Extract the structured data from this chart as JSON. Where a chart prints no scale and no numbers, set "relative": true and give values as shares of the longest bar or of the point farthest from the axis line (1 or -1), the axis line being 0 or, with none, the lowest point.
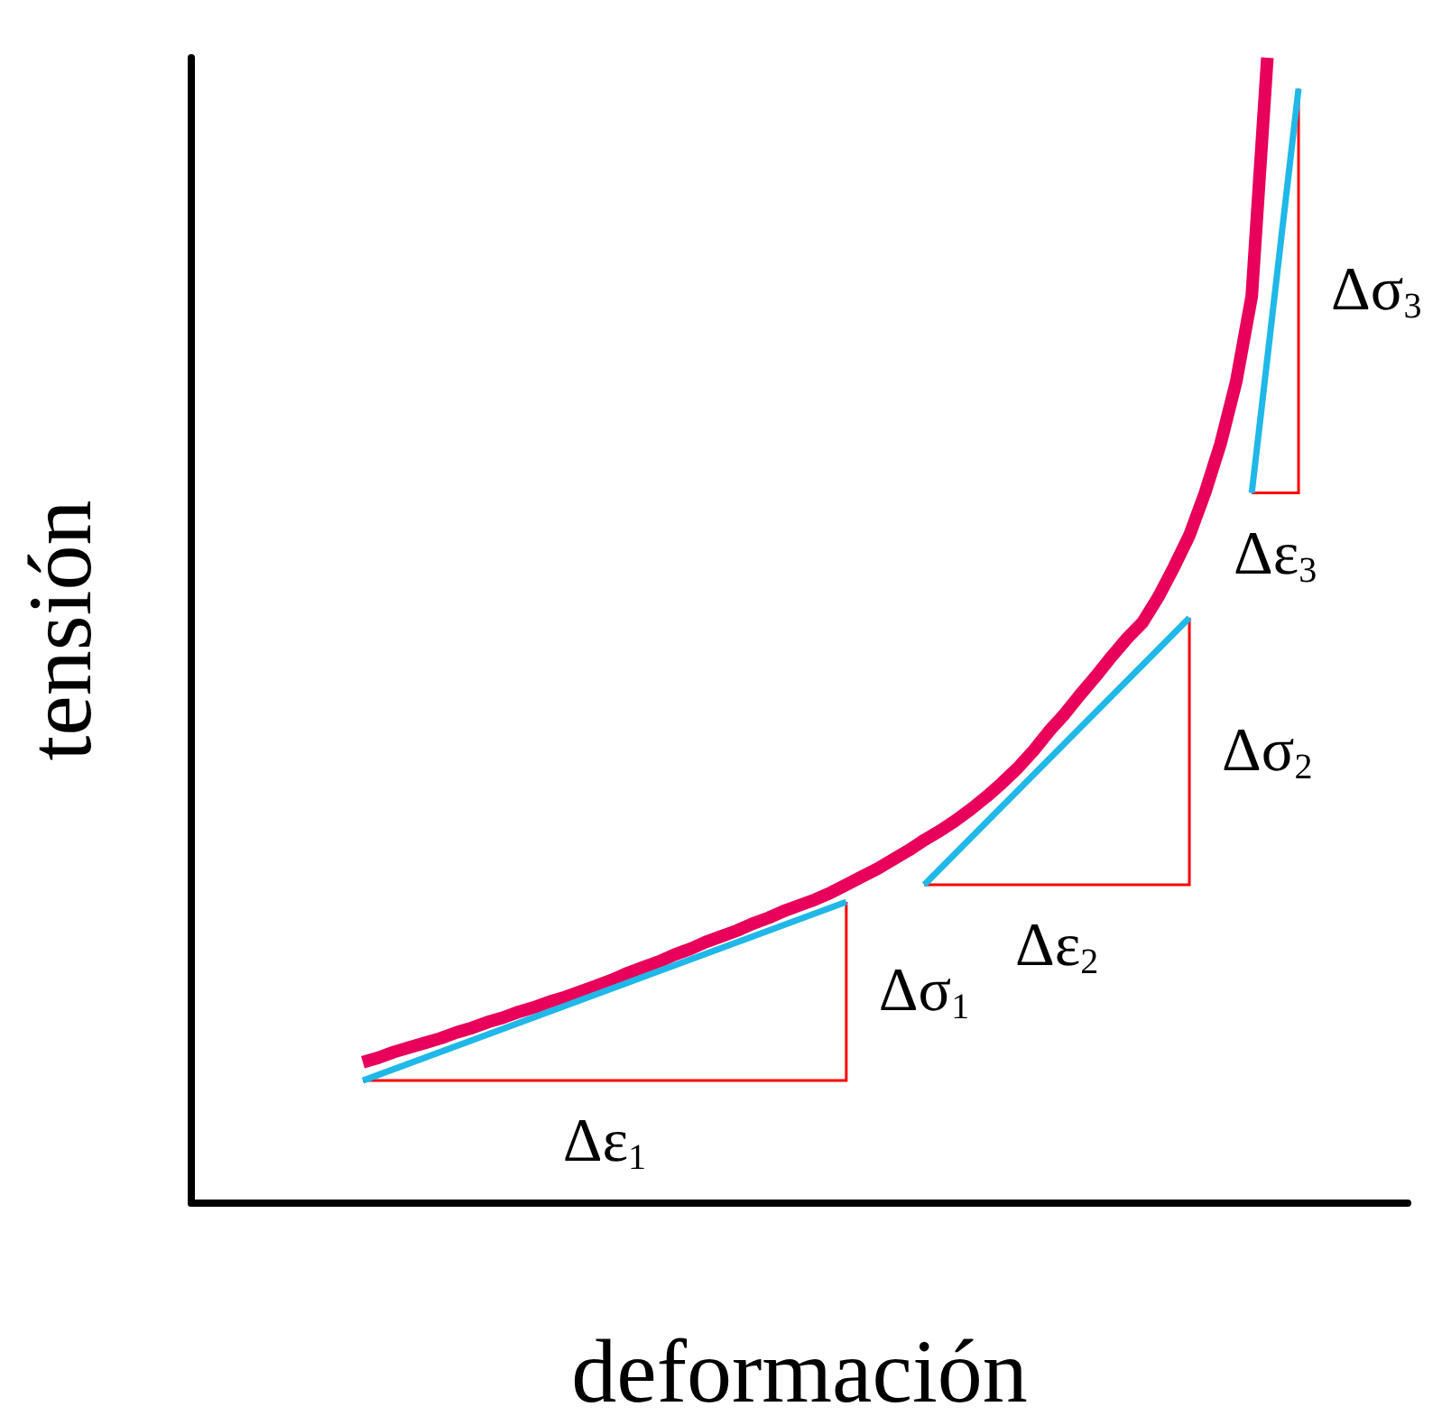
{
  "chart_data": {
    "type": "line",
    "relative": true,
    "xlabel": "deformación",
    "ylabel": "tensión",
    "grid": false,
    "line_style": "solid",
    "categories": [
      null,
      null,
      null,
      null,
      null,
      null,
      null,
      null,
      null,
      null,
      null,
      null,
      null,
      null,
      null,
      null,
      null,
      null,
      null,
      null,
      null,
      null,
      null,
      null,
      null,
      null,
      null,
      null,
      null,
      null,
      null,
      null,
      null,
      null,
      null,
      null,
      null,
      null,
      null,
      null,
      null,
      null,
      null,
      null,
      null,
      null,
      null,
      null,
      null,
      null,
      null,
      null,
      null,
      null,
      null,
      null,
      null,
      null,
      null,
      null,
      null,
      null,
      null,
      null,
      null,
      null,
      null,
      null,
      null,
      null,
      null,
      null,
      null,
      null,
      null,
      null,
      null,
      null,
      null
    ],
    "series": [
      {
        "color": "#e8005a",
        "values": [
          null,
          null,
          null,
          null,
          null,
          null,
          null,
          null,
          null,
          null,
          null,
          0.123,
          0.127,
          0.132,
          0.136,
          0.14,
          0.144,
          0.149,
          0.153,
          0.158,
          0.162,
          0.167,
          0.171,
          0.176,
          0.18,
          0.185,
          0.19,
          0.195,
          0.201,
          0.206,
          0.211,
          0.217,
          0.222,
          0.228,
          0.233,
          0.238,
          0.244,
          0.249,
          0.255,
          0.26,
          0.265,
          0.271,
          0.278,
          0.285,
          0.292,
          0.3,
          0.308,
          0.317,
          0.325,
          0.334,
          0.344,
          0.355,
          0.367,
          0.38,
          0.395,
          0.412,
          0.427,
          0.444,
          0.46,
          0.477,
          0.493,
          0.507,
          0.529,
          0.555,
          0.583,
          0.62,
          0.663,
          0.717,
          0.792,
          1.0,
          null,
          null,
          null,
          null,
          null,
          null,
          null,
          null,
          null
        ]
      },
      {
        "color": "#1fb8e8",
        "values": [
          null,
          null,
          null,
          null,
          null,
          null,
          null,
          null,
          null,
          null,
          null,
          0.107,
          null,
          null,
          null,
          null,
          null,
          null,
          null,
          null,
          null,
          null,
          null,
          null,
          null,
          null,
          null,
          null,
          null,
          null,
          null,
          null,
          null,
          null,
          null,
          null,
          null,
          null,
          null,
          null,
          null,
          null,
          0.263,
          null,
          null,
          null,
          null,
          null,
          null,
          null,
          null,
          null,
          null,
          null,
          null,
          null,
          null,
          null,
          null,
          null,
          null,
          null,
          null,
          null,
          null,
          null,
          null,
          null,
          null,
          null,
          null,
          null,
          null,
          null,
          null,
          null,
          null,
          null,
          null
        ]
      },
      {
        "color": "#1fb8e8",
        "values": [
          null,
          null,
          null,
          null,
          null,
          null,
          null,
          null,
          null,
          null,
          null,
          null,
          null,
          null,
          null,
          null,
          null,
          null,
          null,
          null,
          null,
          null,
          null,
          null,
          null,
          null,
          null,
          null,
          null,
          null,
          null,
          null,
          null,
          null,
          null,
          null,
          null,
          null,
          null,
          null,
          null,
          null,
          null,
          null,
          null,
          null,
          null,
          0.278,
          null,
          null,
          null,
          null,
          null,
          null,
          null,
          null,
          null,
          null,
          null,
          null,
          null,
          null,
          null,
          null,
          0.511,
          null,
          null,
          null,
          null,
          null,
          null,
          null,
          null,
          null,
          null,
          null,
          null,
          null,
          null
        ]
      },
      {
        "color": "#1fb8e8",
        "values": [
          null,
          null,
          null,
          null,
          null,
          null,
          null,
          null,
          null,
          null,
          null,
          null,
          null,
          null,
          null,
          null,
          null,
          null,
          null,
          null,
          null,
          null,
          null,
          null,
          null,
          null,
          null,
          null,
          null,
          null,
          null,
          null,
          null,
          null,
          null,
          null,
          null,
          null,
          null,
          null,
          null,
          null,
          null,
          null,
          null,
          null,
          null,
          null,
          null,
          null,
          null,
          null,
          null,
          null,
          null,
          null,
          null,
          null,
          null,
          null,
          null,
          null,
          null,
          null,
          null,
          null,
          null,
          null,
          0.62,
          null,
          null,
          0.973,
          null,
          null,
          null,
          null,
          null,
          null,
          null
        ]
      }
    ],
    "annotations": [
      "Δε$_{1}$",
      "Δσ$_{1}$",
      "Δε$_{2}$",
      "Δσ$_{2}$",
      "Δε$_{3}$",
      "Δσ$_{3}$"
    ]
  }
}
